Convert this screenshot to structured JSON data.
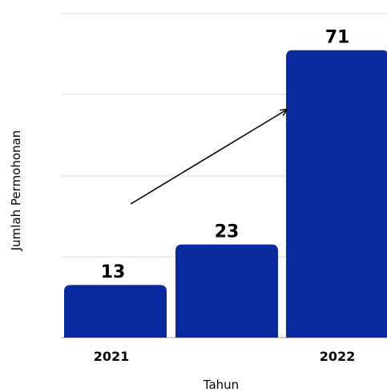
{
  "chart_data": {
    "type": "bar",
    "categories": [
      "2021",
      "",
      "2022"
    ],
    "values": [
      13,
      23,
      71
    ],
    "value_labels": [
      "13",
      "23",
      "71"
    ],
    "xlabel": "Tahun",
    "ylabel": "Jumlah Permohonan",
    "ylim": [
      0,
      80
    ],
    "grid": true,
    "trend_arrow": true,
    "colors": {
      "bar": "#0a2aa0",
      "grid": "#d9d9d9",
      "axis": "#bfbfbf",
      "arrow": "#000000"
    }
  }
}
